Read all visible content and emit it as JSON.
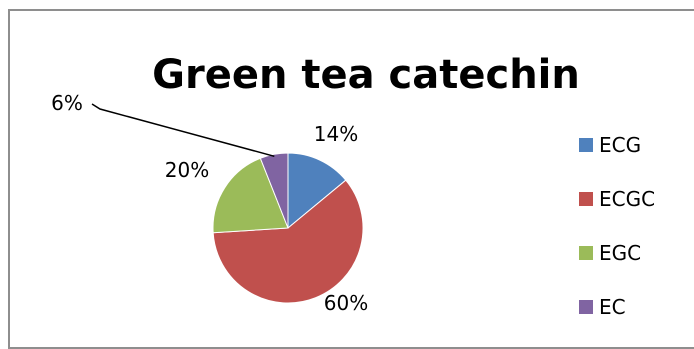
{
  "chart_data": {
    "type": "pie",
    "title": "Green tea catechin",
    "slices": [
      {
        "label": "ECG",
        "value": 14,
        "display": "14%",
        "color": "#4f81bd"
      },
      {
        "label": "ECGC",
        "value": 60,
        "display": "60%",
        "color": "#c0504d"
      },
      {
        "label": "EGC",
        "value": 20,
        "display": "20%",
        "color": "#9bbb59"
      },
      {
        "label": "EC",
        "value": 6,
        "display": "6%",
        "color": "#8064a2"
      }
    ],
    "legend": {
      "placement": "right",
      "entries": [
        "ECG",
        "ECGC",
        "EGC",
        "EC"
      ]
    },
    "leader_line_color": "#000000",
    "border_color": "#8e8e8e"
  }
}
